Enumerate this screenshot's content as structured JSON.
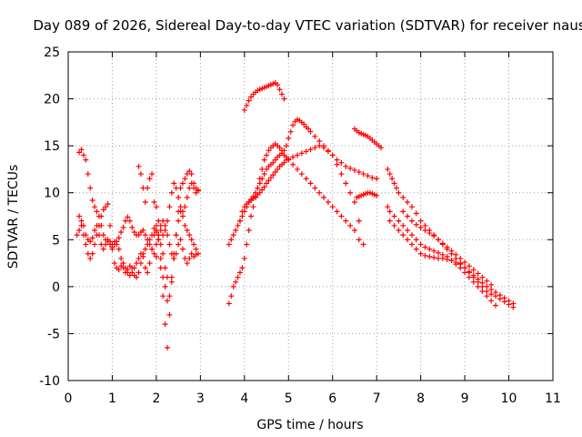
{
  "chart_data": {
    "type": "scatter",
    "title": "Day 089 of 2026, Sidereal Day-to-day VTEC variation (SDTVAR) for receiver naus",
    "xlabel": "GPS time / hours",
    "ylabel": "SDTVAR / TECUs",
    "xlim": [
      0,
      11
    ],
    "ylim": [
      -10,
      25
    ],
    "x_ticks": [
      0,
      1,
      2,
      3,
      4,
      5,
      6,
      7,
      8,
      9,
      10,
      11
    ],
    "y_ticks": [
      -10,
      -5,
      0,
      5,
      10,
      15,
      20,
      25
    ],
    "grid": true,
    "marker": "+",
    "color": "#ff0000",
    "series": [
      {
        "name": "arc-a",
        "x": [
          0.25,
          0.3,
          0.35,
          0.4,
          0.45,
          0.5,
          0.55,
          0.6,
          0.65,
          0.7,
          0.75,
          0.8,
          0.85,
          0.9,
          0.95,
          1.0,
          1.05,
          1.1,
          1.15,
          1.2,
          1.25,
          1.3,
          1.35,
          1.4,
          1.45,
          1.5,
          1.55,
          1.6,
          1.65,
          1.7,
          1.75,
          1.8,
          1.85,
          1.9,
          1.95,
          2.0
        ],
        "y": [
          14.3,
          14.6,
          14.0,
          13.5,
          12.0,
          10.5,
          9.2,
          8.5,
          8.0,
          7.5,
          6.5,
          5.5,
          5.0,
          4.8,
          4.5,
          4.2,
          4.5,
          4.8,
          5.2,
          5.8,
          6.3,
          7.0,
          7.4,
          7.0,
          6.3,
          5.8,
          5.5,
          5.5,
          5.8,
          6.0,
          5.5,
          5.0,
          4.5,
          4.0,
          3.5,
          3.2
        ]
      },
      {
        "name": "arc-b",
        "x": [
          0.25,
          0.3,
          0.35,
          0.4,
          0.45,
          0.5,
          0.55,
          0.6,
          0.65,
          0.7,
          0.75,
          0.8,
          0.85,
          0.9,
          0.95,
          1.0,
          1.05,
          1.1,
          1.15,
          1.2,
          1.25,
          1.3,
          1.35,
          1.4,
          1.45,
          1.5,
          1.55,
          1.6,
          1.65,
          1.7,
          1.75,
          1.8,
          1.85,
          1.9,
          1.95,
          2.0,
          2.05,
          2.1,
          2.15,
          2.2,
          2.25
        ],
        "y": [
          7.5,
          6.5,
          5.5,
          4.5,
          3.5,
          3.0,
          3.5,
          4.5,
          5.5,
          6.5,
          7.5,
          8.2,
          8.5,
          8.8,
          6.5,
          4.0,
          2.5,
          2.0,
          1.8,
          2.2,
          2.5,
          2.0,
          1.5,
          1.2,
          1.5,
          2.0,
          2.5,
          3.0,
          3.5,
          3.2,
          2.0,
          1.5,
          2.5,
          4.0,
          5.5,
          6.0,
          5.5,
          4.5,
          3.5,
          2.0,
          1.0
        ]
      },
      {
        "name": "arc-c",
        "x": [
          0.2,
          0.25,
          0.3,
          0.35,
          0.4,
          0.45,
          0.5,
          0.55,
          0.6,
          0.65,
          0.7,
          0.75,
          0.8,
          0.85,
          0.9,
          0.95,
          1.0,
          1.05,
          1.1,
          1.15,
          1.2,
          1.25,
          1.3,
          1.35,
          1.4,
          1.45,
          1.5,
          1.55,
          1.6,
          1.65,
          1.7,
          1.75,
          1.8,
          1.85,
          1.9,
          1.95,
          2.0
        ],
        "y": [
          5.5,
          6.0,
          7.0,
          6.5,
          5.5,
          5.0,
          4.8,
          5.2,
          6.0,
          6.5,
          5.5,
          4.5,
          4.0,
          4.5,
          5.0,
          4.8,
          4.5,
          4.8,
          4.5,
          4.0,
          3.0,
          2.0,
          1.5,
          1.8,
          2.2,
          2.0,
          1.2,
          1.0,
          1.5,
          2.5,
          3.5,
          4.0,
          4.5,
          5.0,
          5.5,
          6.2,
          5.8
        ]
      },
      {
        "name": "arc-d",
        "x": [
          1.6,
          1.65,
          1.7,
          1.75,
          1.8,
          1.85,
          1.9,
          1.95,
          2.0,
          2.05,
          2.1,
          2.15,
          2.2,
          2.25,
          2.3,
          2.35,
          2.4,
          2.45,
          2.5,
          2.55,
          2.6,
          2.65,
          2.7,
          2.75,
          2.8,
          2.85,
          2.9,
          2.95
        ],
        "y": [
          12.8,
          12.0,
          10.5,
          9.0,
          10.5,
          11.5,
          12.0,
          9.0,
          6.5,
          5.0,
          3.0,
          1.0,
          0.0,
          -1.5,
          -1.0,
          1.0,
          3.5,
          5.5,
          7.0,
          8.0,
          7.5,
          6.5,
          6.0,
          5.5,
          5.0,
          4.5,
          4.0,
          3.5
        ]
      },
      {
        "name": "arc-e",
        "x": [
          2.0,
          2.05,
          2.1,
          2.15,
          2.2,
          2.25,
          2.3,
          2.35,
          2.4,
          2.45,
          2.5,
          2.55,
          2.6,
          2.65,
          2.7,
          2.75,
          2.8,
          2.85,
          2.9,
          2.95
        ],
        "y": [
          8.5,
          7.0,
          6.0,
          5.5,
          6.0,
          7.0,
          8.5,
          10.0,
          11.0,
          10.5,
          9.5,
          8.5,
          8.0,
          8.5,
          9.5,
          10.5,
          11.0,
          10.5,
          10.0,
          10.2
        ]
      },
      {
        "name": "arc-f",
        "x": [
          2.05,
          2.1,
          2.15,
          2.2,
          2.25,
          2.3,
          2.35,
          2.4,
          2.45,
          2.5,
          2.55,
          2.6,
          2.65,
          2.7,
          2.75,
          2.8,
          2.85,
          2.9,
          2.95
        ],
        "y": [
          5.0,
          2.0,
          -1.0,
          -4.0,
          -6.5,
          -3.0,
          0.5,
          3.0,
          5.5,
          8.0,
          10.5,
          11.0,
          11.5,
          12.0,
          12.3,
          12.0,
          11.0,
          10.5,
          10.3
        ]
      },
      {
        "name": "arc-g",
        "x": [
          2.0,
          2.05,
          2.1,
          2.15,
          2.2,
          2.25,
          2.3,
          2.35,
          2.4,
          2.45,
          2.5,
          2.55,
          2.6,
          2.65,
          2.7,
          2.75,
          2.8,
          2.85,
          2.9
        ],
        "y": [
          4.5,
          5.5,
          6.5,
          7.0,
          6.5,
          5.5,
          4.5,
          3.5,
          3.0,
          3.5,
          4.5,
          5.0,
          4.0,
          3.0,
          2.5,
          3.0,
          3.5,
          3.2,
          3.4
        ]
      },
      {
        "name": "arc-h",
        "x": [
          4.0,
          4.05,
          4.1,
          4.15,
          4.2,
          4.25,
          4.3,
          4.35,
          4.4,
          4.45,
          4.5,
          4.55,
          4.6,
          4.65,
          4.7,
          4.75,
          4.8,
          4.85,
          4.9
        ],
        "y": [
          18.8,
          19.3,
          19.8,
          20.2,
          20.5,
          20.7,
          20.9,
          21.0,
          21.1,
          21.2,
          21.3,
          21.4,
          21.5,
          21.6,
          21.7,
          21.5,
          21.0,
          20.5,
          20.0
        ]
      },
      {
        "name": "arc-i",
        "x": [
          3.65,
          3.7,
          3.75,
          3.8,
          3.85,
          3.9,
          3.95,
          4.0,
          4.05,
          4.1,
          4.15,
          4.2,
          4.25,
          4.3,
          4.35,
          4.4,
          4.45,
          4.5,
          4.55,
          4.6,
          4.65,
          4.7,
          4.75,
          4.8,
          4.85,
          4.9,
          4.95,
          5.0,
          5.05,
          5.1,
          5.15,
          5.2,
          5.25,
          5.3,
          5.35,
          5.4,
          5.45,
          5.5,
          5.6,
          5.7,
          5.8,
          5.9,
          6.0,
          6.1,
          6.2,
          6.3,
          6.4,
          6.5,
          6.6,
          6.7,
          6.8,
          6.9,
          7.0
        ],
        "y": [
          4.5,
          5.0,
          5.5,
          6.0,
          6.5,
          7.0,
          7.5,
          8.0,
          8.5,
          9.0,
          9.3,
          9.6,
          10.0,
          10.5,
          11.0,
          11.5,
          12.0,
          12.5,
          12.8,
          13.0,
          13.2,
          13.5,
          13.8,
          14.0,
          14.2,
          14.5,
          15.0,
          15.8,
          16.5,
          17.2,
          17.6,
          17.8,
          17.7,
          17.5,
          17.3,
          17.0,
          16.8,
          16.5,
          16.0,
          15.5,
          15.0,
          14.5,
          14.0,
          13.5,
          13.2,
          12.8,
          12.6,
          12.4,
          12.2,
          12.0,
          11.8,
          11.6,
          11.5
        ]
      },
      {
        "name": "arc-j",
        "x": [
          3.65,
          3.7,
          3.75,
          3.8,
          3.85,
          3.9,
          3.95,
          4.0,
          4.05,
          4.1,
          4.15,
          4.2,
          4.25,
          4.3,
          4.35,
          4.4,
          4.45,
          4.5,
          4.55,
          4.6,
          4.65,
          4.7,
          4.75,
          4.8,
          4.85,
          4.9,
          4.95,
          5.0,
          5.1,
          5.2,
          5.3,
          5.4,
          5.5,
          5.6,
          5.7,
          5.8,
          5.9,
          6.0,
          6.1,
          6.2,
          6.3,
          6.4,
          6.5,
          6.6,
          6.7
        ],
        "y": [
          -1.8,
          -1.0,
          0.0,
          0.5,
          1.0,
          1.5,
          2.0,
          3.0,
          4.5,
          6.0,
          7.5,
          8.5,
          9.5,
          10.5,
          11.5,
          12.5,
          13.5,
          14.0,
          14.5,
          14.8,
          15.0,
          15.2,
          15.0,
          14.8,
          14.5,
          14.0,
          13.8,
          13.5,
          13.0,
          12.5,
          12.0,
          11.5,
          11.0,
          10.5,
          10.0,
          9.5,
          9.0,
          8.5,
          8.0,
          7.5,
          7.0,
          6.5,
          6.0,
          5.0,
          4.5
        ]
      },
      {
        "name": "arc-k",
        "x": [
          3.9,
          3.95,
          4.0,
          4.05,
          4.1,
          4.15,
          4.2,
          4.25,
          4.3,
          4.35,
          4.4,
          4.45,
          4.5,
          4.55,
          4.6,
          4.65,
          4.7,
          4.75,
          4.8,
          4.85,
          4.9,
          4.95,
          5.0,
          5.1,
          5.2,
          5.3,
          5.4,
          5.5,
          5.6,
          5.7,
          5.8,
          5.9,
          6.0,
          6.1,
          6.2,
          6.3,
          6.4,
          6.5,
          6.6
        ],
        "y": [
          7.0,
          8.0,
          8.5,
          8.8,
          9.0,
          9.2,
          9.4,
          9.6,
          9.8,
          10.0,
          10.3,
          10.6,
          11.0,
          11.3,
          11.6,
          11.9,
          12.2,
          12.5,
          12.8,
          13.0,
          13.2,
          13.5,
          13.6,
          13.8,
          14.0,
          14.2,
          14.4,
          14.6,
          14.8,
          15.0,
          14.8,
          14.4,
          14.0,
          13.0,
          12.0,
          11.0,
          10.0,
          9.0,
          7.0
        ]
      },
      {
        "name": "arc-l",
        "x": [
          6.5,
          6.55,
          6.6,
          6.65,
          6.7,
          6.75,
          6.8,
          6.85,
          6.9,
          6.95,
          7.0,
          7.05,
          7.1
        ],
        "y": [
          16.8,
          16.6,
          16.4,
          16.3,
          16.2,
          16.1,
          16.0,
          15.8,
          15.6,
          15.4,
          15.2,
          15.0,
          14.8
        ]
      },
      {
        "name": "arc-m",
        "x": [
          6.55,
          6.6,
          6.65,
          6.7,
          6.75,
          6.8,
          6.85,
          6.9,
          6.95,
          7.0
        ],
        "y": [
          9.5,
          9.6,
          9.7,
          9.8,
          9.9,
          10.0,
          10.0,
          9.9,
          9.8,
          9.7
        ]
      },
      {
        "name": "arc-n",
        "x": [
          7.25,
          7.3,
          7.35,
          7.4,
          7.45,
          7.5,
          7.6,
          7.7,
          7.8,
          7.9,
          8.0,
          8.1,
          8.2,
          8.3,
          8.4,
          8.5,
          8.6,
          8.7,
          8.8,
          8.9,
          9.0,
          9.1,
          9.2,
          9.3,
          9.4,
          9.5,
          9.6,
          9.7,
          9.8,
          9.9,
          10.0,
          10.1
        ],
        "y": [
          12.5,
          12.0,
          11.5,
          11.0,
          10.5,
          10.0,
          9.5,
          9.0,
          8.5,
          7.8,
          7.0,
          6.5,
          6.0,
          5.5,
          5.0,
          4.5,
          4.0,
          3.5,
          3.0,
          2.5,
          2.0,
          1.5,
          1.0,
          0.5,
          0.0,
          -0.5,
          -0.8,
          -1.0,
          -1.3,
          -1.6,
          -1.9,
          -2.2
        ]
      },
      {
        "name": "arc-o",
        "x": [
          7.25,
          7.3,
          7.4,
          7.5,
          7.6,
          7.7,
          7.8,
          7.9,
          8.0,
          8.1,
          8.2,
          8.3,
          8.4,
          8.5,
          8.6,
          8.7,
          8.8,
          8.9,
          9.0,
          9.1,
          9.2,
          9.3,
          9.4,
          9.5,
          9.6,
          9.7
        ],
        "y": [
          8.5,
          8.0,
          7.5,
          7.0,
          6.5,
          6.0,
          5.5,
          5.0,
          4.5,
          4.2,
          4.0,
          3.8,
          3.6,
          3.4,
          3.2,
          2.8,
          2.4,
          2.0,
          1.5,
          1.0,
          0.5,
          0.0,
          -0.5,
          -1.0,
          -1.5,
          -2.0
        ]
      },
      {
        "name": "arc-p",
        "x": [
          7.3,
          7.4,
          7.5,
          7.6,
          7.7,
          7.8,
          7.9,
          8.0,
          8.1,
          8.2,
          8.3,
          8.4,
          8.5,
          8.6,
          8.7,
          8.8,
          8.9,
          9.0,
          9.1,
          9.2,
          9.3,
          9.4,
          9.5,
          9.6,
          9.7,
          9.8,
          9.9,
          10.0,
          10.1
        ],
        "y": [
          7.0,
          6.5,
          6.0,
          5.5,
          5.0,
          4.5,
          4.0,
          3.5,
          3.3,
          3.2,
          3.1,
          3.0,
          3.0,
          2.9,
          2.8,
          2.6,
          2.4,
          2.0,
          1.6,
          1.2,
          0.8,
          0.4,
          0.0,
          -0.3,
          -0.6,
          -0.9,
          -1.2,
          -1.5,
          -1.8
        ]
      },
      {
        "name": "arc-q",
        "x": [
          7.6,
          7.7,
          7.8,
          7.9,
          8.0,
          8.1,
          8.2,
          8.3,
          8.4,
          8.5,
          8.6,
          8.7,
          8.8,
          8.9,
          9.0,
          9.1,
          9.2,
          9.3,
          9.4,
          9.5,
          9.6
        ],
        "y": [
          8.0,
          7.5,
          7.0,
          6.6,
          6.3,
          6.0,
          5.7,
          5.4,
          5.0,
          4.6,
          4.2,
          3.8,
          3.4,
          3.0,
          2.6,
          2.2,
          1.8,
          1.4,
          1.0,
          0.6,
          0.2
        ]
      }
    ]
  }
}
